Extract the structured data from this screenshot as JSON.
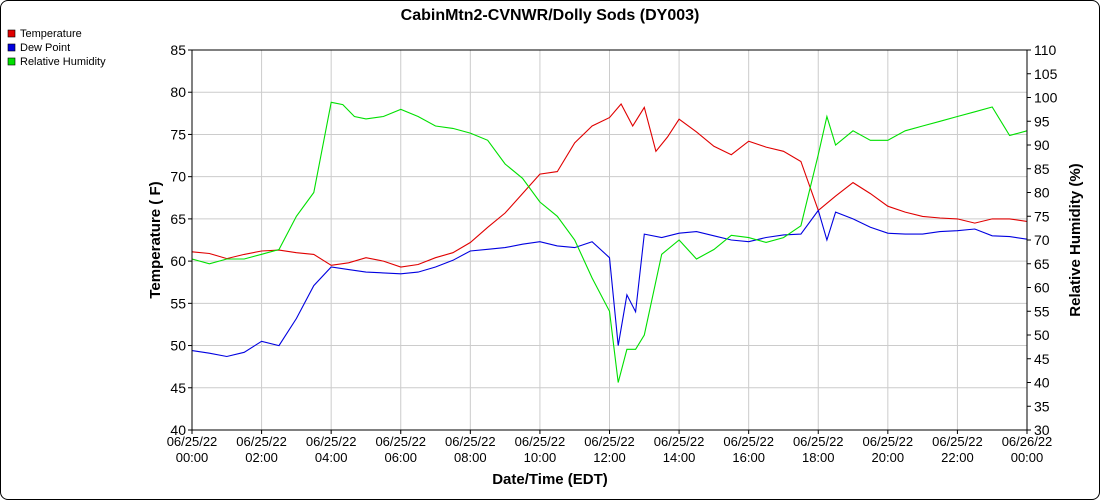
{
  "chart_data": {
    "type": "line",
    "title": "CabinMtn2-CVNWR/Dolly Sods (DY003)",
    "xlabel": "Date/Time (EDT)",
    "ylabel_left": "Temperature ( F)",
    "ylabel_right": "Relative Humidity (%)",
    "y_left_lim": [
      40,
      85
    ],
    "y_right_lim": [
      30,
      110
    ],
    "y_left_ticks": [
      "40",
      "45",
      "50",
      "55",
      "60",
      "65",
      "70",
      "75",
      "80",
      "85"
    ],
    "y_right_ticks": [
      "30",
      "35",
      "40",
      "45",
      "50",
      "55",
      "60",
      "65",
      "70",
      "75",
      "80",
      "85",
      "90",
      "95",
      "100",
      "105",
      "110"
    ],
    "x_range": [
      "2022-06-25 00:00",
      "2022-06-26 00:00"
    ],
    "x_ticks": [
      {
        "date": "06/25/22",
        "time": "00:00"
      },
      {
        "date": "06/25/22",
        "time": "02:00"
      },
      {
        "date": "06/25/22",
        "time": "04:00"
      },
      {
        "date": "06/25/22",
        "time": "06:00"
      },
      {
        "date": "06/25/22",
        "time": "08:00"
      },
      {
        "date": "06/25/22",
        "time": "10:00"
      },
      {
        "date": "06/25/22",
        "time": "12:00"
      },
      {
        "date": "06/25/22",
        "time": "14:00"
      },
      {
        "date": "06/25/22",
        "time": "16:00"
      },
      {
        "date": "06/25/22",
        "time": "18:00"
      },
      {
        "date": "06/25/22",
        "time": "20:00"
      },
      {
        "date": "06/25/22",
        "time": "22:00"
      },
      {
        "date": "06/26/22",
        "time": "00:00"
      }
    ],
    "grid": true,
    "legend_position": "top-left",
    "series": [
      {
        "name": "Temperature",
        "color": "#e00000",
        "axis": "left",
        "x": [
          "2022-06-25 00:00",
          "2022-06-25 00:30",
          "2022-06-25 01:00",
          "2022-06-25 01:30",
          "2022-06-25 02:00",
          "2022-06-25 02:30",
          "2022-06-25 03:00",
          "2022-06-25 03:30",
          "2022-06-25 04:00",
          "2022-06-25 04:30",
          "2022-06-25 05:00",
          "2022-06-25 05:30",
          "2022-06-25 06:00",
          "2022-06-25 06:30",
          "2022-06-25 07:00",
          "2022-06-25 07:30",
          "2022-06-25 08:00",
          "2022-06-25 08:30",
          "2022-06-25 09:00",
          "2022-06-25 09:30",
          "2022-06-25 10:00",
          "2022-06-25 10:30",
          "2022-06-25 11:00",
          "2022-06-25 11:30",
          "2022-06-25 12:00",
          "2022-06-25 12:20",
          "2022-06-25 12:40",
          "2022-06-25 13:00",
          "2022-06-25 13:20",
          "2022-06-25 13:40",
          "2022-06-25 14:00",
          "2022-06-25 14:30",
          "2022-06-25 15:00",
          "2022-06-25 15:30",
          "2022-06-25 16:00",
          "2022-06-25 16:30",
          "2022-06-25 17:00",
          "2022-06-25 17:30",
          "2022-06-25 18:00",
          "2022-06-25 18:30",
          "2022-06-25 19:00",
          "2022-06-25 19:30",
          "2022-06-25 20:00",
          "2022-06-25 20:30",
          "2022-06-25 21:00",
          "2022-06-25 21:30",
          "2022-06-25 22:00",
          "2022-06-25 22:30",
          "2022-06-25 23:00",
          "2022-06-25 23:30",
          "2022-06-26 00:00"
        ],
        "y": [
          61.1,
          60.9,
          60.3,
          60.8,
          61.2,
          61.3,
          61.0,
          60.8,
          59.5,
          59.8,
          60.4,
          60.0,
          59.3,
          59.6,
          60.4,
          61.0,
          62.2,
          64.0,
          65.7,
          68.0,
          70.3,
          70.6,
          74.0,
          76.0,
          77.0,
          78.6,
          76.0,
          78.2,
          73.0,
          74.7,
          76.8,
          75.3,
          73.6,
          72.6,
          74.2,
          73.5,
          73.0,
          71.8,
          66.0,
          67.7,
          69.3,
          68.0,
          66.5,
          65.8,
          65.3,
          65.1,
          65.0,
          64.5,
          65.0,
          65.0,
          64.7
        ]
      },
      {
        "name": "Dew Point",
        "color": "#0000e0",
        "axis": "left",
        "x": [
          "2022-06-25 00:00",
          "2022-06-25 00:30",
          "2022-06-25 01:00",
          "2022-06-25 01:30",
          "2022-06-25 02:00",
          "2022-06-25 02:30",
          "2022-06-25 03:00",
          "2022-06-25 03:30",
          "2022-06-25 04:00",
          "2022-06-25 04:30",
          "2022-06-25 05:00",
          "2022-06-25 05:30",
          "2022-06-25 06:00",
          "2022-06-25 06:30",
          "2022-06-25 07:00",
          "2022-06-25 07:30",
          "2022-06-25 08:00",
          "2022-06-25 08:30",
          "2022-06-25 09:00",
          "2022-06-25 09:30",
          "2022-06-25 10:00",
          "2022-06-25 10:30",
          "2022-06-25 11:00",
          "2022-06-25 11:30",
          "2022-06-25 12:00",
          "2022-06-25 12:15",
          "2022-06-25 12:30",
          "2022-06-25 12:45",
          "2022-06-25 13:00",
          "2022-06-25 13:30",
          "2022-06-25 14:00",
          "2022-06-25 14:30",
          "2022-06-25 15:00",
          "2022-06-25 15:30",
          "2022-06-25 16:00",
          "2022-06-25 16:30",
          "2022-06-25 17:00",
          "2022-06-25 17:30",
          "2022-06-25 18:00",
          "2022-06-25 18:15",
          "2022-06-25 18:30",
          "2022-06-25 19:00",
          "2022-06-25 19:30",
          "2022-06-25 20:00",
          "2022-06-25 20:30",
          "2022-06-25 21:00",
          "2022-06-25 21:30",
          "2022-06-25 22:00",
          "2022-06-25 22:30",
          "2022-06-25 23:00",
          "2022-06-25 23:30",
          "2022-06-26 00:00"
        ],
        "y": [
          49.4,
          49.1,
          48.7,
          49.2,
          50.5,
          50.0,
          53.2,
          57.1,
          59.3,
          59.0,
          58.7,
          58.6,
          58.5,
          58.7,
          59.3,
          60.1,
          61.2,
          61.4,
          61.6,
          62.0,
          62.3,
          61.8,
          61.6,
          62.3,
          60.4,
          50.0,
          56.0,
          54.0,
          63.2,
          62.8,
          63.3,
          63.5,
          63.0,
          62.5,
          62.3,
          62.8,
          63.1,
          63.2,
          66.0,
          62.5,
          65.8,
          65.0,
          64.0,
          63.3,
          63.2,
          63.2,
          63.5,
          63.6,
          63.8,
          63.0,
          62.9,
          62.6
        ]
      },
      {
        "name": "Relative Humidity",
        "color": "#00e000",
        "axis": "right",
        "x": [
          "2022-06-25 00:00",
          "2022-06-25 00:30",
          "2022-06-25 01:00",
          "2022-06-25 01:30",
          "2022-06-25 02:00",
          "2022-06-25 02:30",
          "2022-06-25 03:00",
          "2022-06-25 03:30",
          "2022-06-25 04:00",
          "2022-06-25 04:20",
          "2022-06-25 04:40",
          "2022-06-25 05:00",
          "2022-06-25 05:30",
          "2022-06-25 06:00",
          "2022-06-25 06:30",
          "2022-06-25 07:00",
          "2022-06-25 07:30",
          "2022-06-25 08:00",
          "2022-06-25 08:30",
          "2022-06-25 09:00",
          "2022-06-25 09:30",
          "2022-06-25 10:00",
          "2022-06-25 10:30",
          "2022-06-25 11:00",
          "2022-06-25 11:30",
          "2022-06-25 12:00",
          "2022-06-25 12:15",
          "2022-06-25 12:30",
          "2022-06-25 12:45",
          "2022-06-25 13:00",
          "2022-06-25 13:30",
          "2022-06-25 14:00",
          "2022-06-25 14:30",
          "2022-06-25 15:00",
          "2022-06-25 15:30",
          "2022-06-25 16:00",
          "2022-06-25 16:30",
          "2022-06-25 17:00",
          "2022-06-25 17:30",
          "2022-06-25 18:00",
          "2022-06-25 18:15",
          "2022-06-25 18:30",
          "2022-06-25 19:00",
          "2022-06-25 19:30",
          "2022-06-25 20:00",
          "2022-06-25 20:30",
          "2022-06-25 21:00",
          "2022-06-25 21:30",
          "2022-06-25 22:00",
          "2022-06-25 22:30",
          "2022-06-25 23:00",
          "2022-06-25 23:30",
          "2022-06-26 00:00"
        ],
        "y": [
          66.0,
          65.0,
          66.0,
          66.0,
          67.0,
          68.0,
          75.0,
          80.0,
          99.0,
          98.5,
          96.0,
          95.5,
          96.0,
          97.5,
          96.0,
          94.0,
          93.5,
          92.5,
          91.0,
          86.0,
          83.0,
          78.0,
          75.0,
          70.0,
          62.0,
          55.0,
          40.0,
          47.0,
          47.0,
          50.0,
          67.0,
          70.0,
          66.0,
          68.0,
          71.0,
          70.5,
          69.5,
          70.5,
          73.0,
          88.0,
          96.0,
          90.0,
          93.0,
          91.0,
          91.0,
          93.0,
          94.0,
          95.0,
          96.0,
          97.0,
          98.0,
          92.0,
          93.0
        ]
      }
    ]
  }
}
